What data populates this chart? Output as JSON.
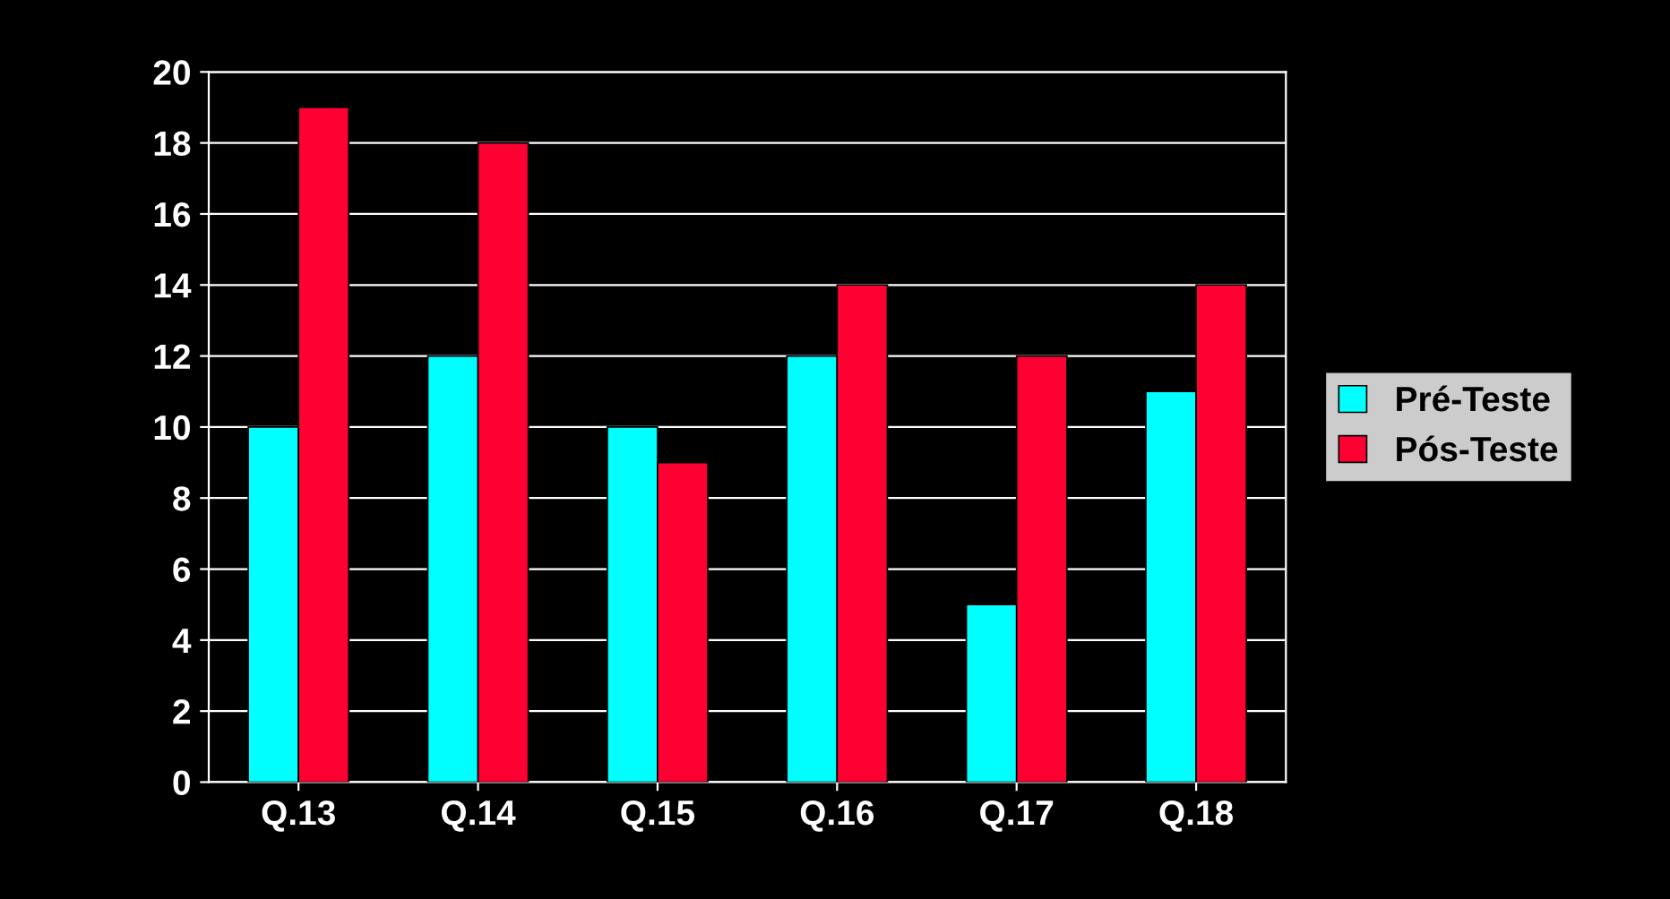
{
  "chart_data": {
    "type": "bar",
    "categories": [
      "Q.13",
      "Q.14",
      "Q.15",
      "Q.16",
      "Q.17",
      "Q.18"
    ],
    "series": [
      {
        "name": "Pré-Teste",
        "color": "#00ffff",
        "values": [
          10,
          12,
          10,
          12,
          5,
          11
        ]
      },
      {
        "name": "Pós-Teste",
        "color": "#ff0033",
        "values": [
          19,
          18,
          9,
          14,
          12,
          14
        ]
      }
    ],
    "ylim": [
      0,
      20
    ],
    "yticks": [
      0,
      2,
      4,
      6,
      8,
      10,
      12,
      14,
      16,
      18,
      20
    ],
    "grid": "y",
    "legend": "right"
  }
}
